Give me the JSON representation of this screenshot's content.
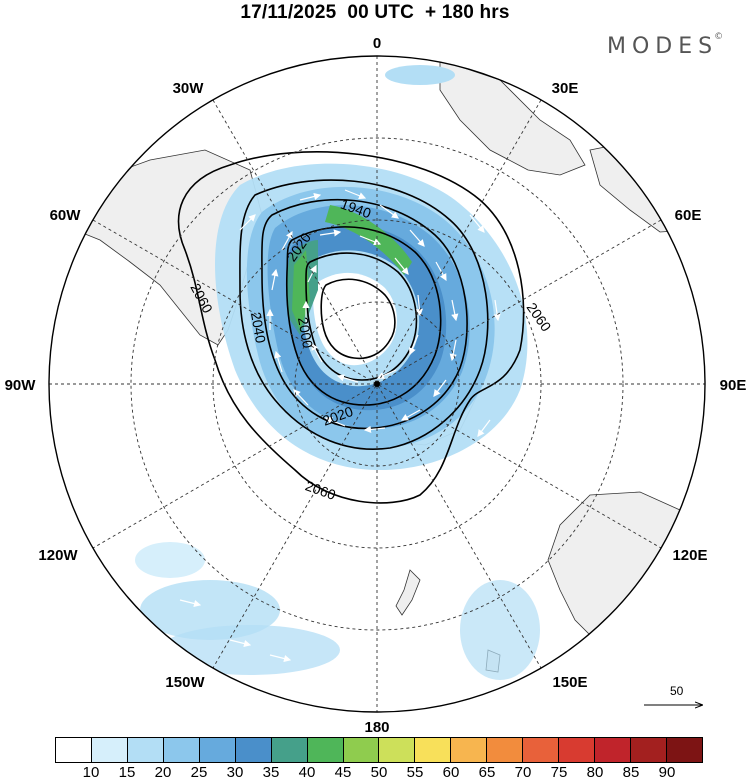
{
  "title": "17/11/2025  00 UTC  + 180 hrs",
  "brand": {
    "name": "MODES",
    "mark": "©"
  },
  "longitude_labels": {
    "lon_0": "0",
    "lon_30E": "30E",
    "lon_60E": "60E",
    "lon_90E": "90E",
    "lon_120E": "120E",
    "lon_150E": "150E",
    "lon_180": "180",
    "lon_150W": "150W",
    "lon_120W": "120W",
    "lon_90W": "90W",
    "lon_60W": "60W",
    "lon_30W": "30W"
  },
  "contour_labels": {
    "c2060_w": "2060",
    "c2040_w": "2040",
    "c2020_nw": "2020",
    "c2000": "2000",
    "c1940": "1940",
    "c2060_e": "2060",
    "c2020_s": "2020",
    "c2060_s": "2060"
  },
  "vector_scale": {
    "value": "50"
  },
  "colorbar": {
    "ticks": [
      "10",
      "15",
      "20",
      "25",
      "30",
      "35",
      "40",
      "45",
      "50",
      "55",
      "60",
      "65",
      "70",
      "75",
      "80",
      "85",
      "90"
    ],
    "colors": [
      "#ffffff",
      "#d6effb",
      "#b3def5",
      "#8cc7ec",
      "#66aadd",
      "#4a8fca",
      "#45a08a",
      "#4fb659",
      "#8fcc4e",
      "#cde05a",
      "#f8e05a",
      "#f7b54f",
      "#f28c3d",
      "#e8613a",
      "#d83b30",
      "#c0242b",
      "#a3201f",
      "#7d1414"
    ]
  }
}
